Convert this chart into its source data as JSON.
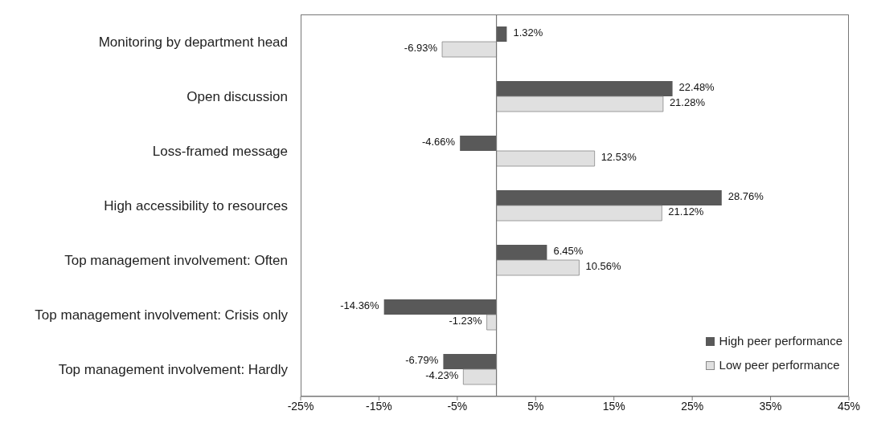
{
  "chart_data": {
    "type": "bar",
    "orientation": "horizontal",
    "categories": [
      "Monitoring by department head",
      "Open discussion ",
      "Loss-framed message",
      "High accessibility to resources",
      "Top management involvement: Often",
      "Top management  involvement: Crisis only",
      "Top management involvement: Hardly"
    ],
    "series": [
      {
        "name": "High peer performance",
        "color": "#595959",
        "values": [
          1.32,
          22.48,
          -4.66,
          28.76,
          6.45,
          -14.36,
          -6.79
        ],
        "value_labels": [
          "1.32%",
          "22.48%",
          "-4.66%",
          "28.76%",
          "6.45%",
          "-14.36%",
          "-6.79%"
        ]
      },
      {
        "name": "Low peer performance",
        "color": "#e0e0e0",
        "values": [
          -6.93,
          21.28,
          12.53,
          21.12,
          10.56,
          -1.23,
          -4.23
        ],
        "value_labels": [
          "-6.93%",
          "21.28%",
          "12.53%",
          "21.12%",
          "10.56%",
          "-1.23%",
          "-4.23%"
        ]
      }
    ],
    "xlim": [
      -25,
      45
    ],
    "xticks": [
      {
        "value": -25,
        "label": "-25%"
      },
      {
        "value": -15,
        "label": "-15%"
      },
      {
        "value": -5,
        "label": "-5%"
      },
      {
        "value": 5,
        "label": "5%"
      },
      {
        "value": 15,
        "label": "15%"
      },
      {
        "value": 25,
        "label": "25%"
      },
      {
        "value": 35,
        "label": "35%"
      },
      {
        "value": 45,
        "label": "45%"
      }
    ],
    "grid": false,
    "legend": "bottom right"
  }
}
